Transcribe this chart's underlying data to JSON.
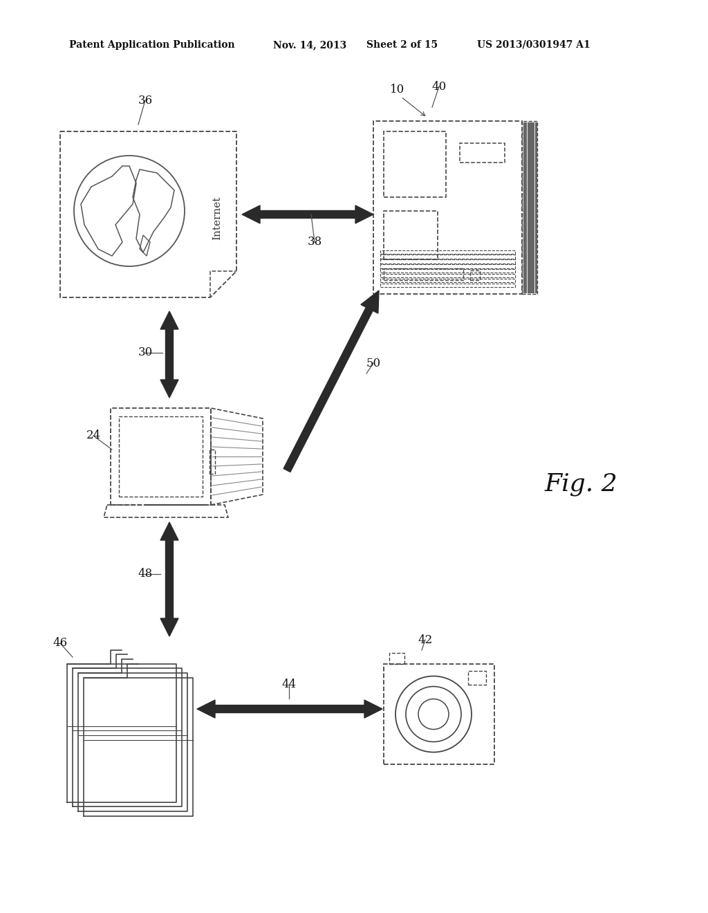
{
  "bg_color": "#ffffff",
  "header_text1": "Patent Application Publication",
  "header_text2": "Nov. 14, 2013",
  "header_text3": "Sheet 2 of 15",
  "header_text4": "US 2013/0301947 A1",
  "fig2_label": "Fig. 2",
  "line_color": "#444444",
  "arrow_color": "#2a2a2a",
  "text_color": "#111111"
}
